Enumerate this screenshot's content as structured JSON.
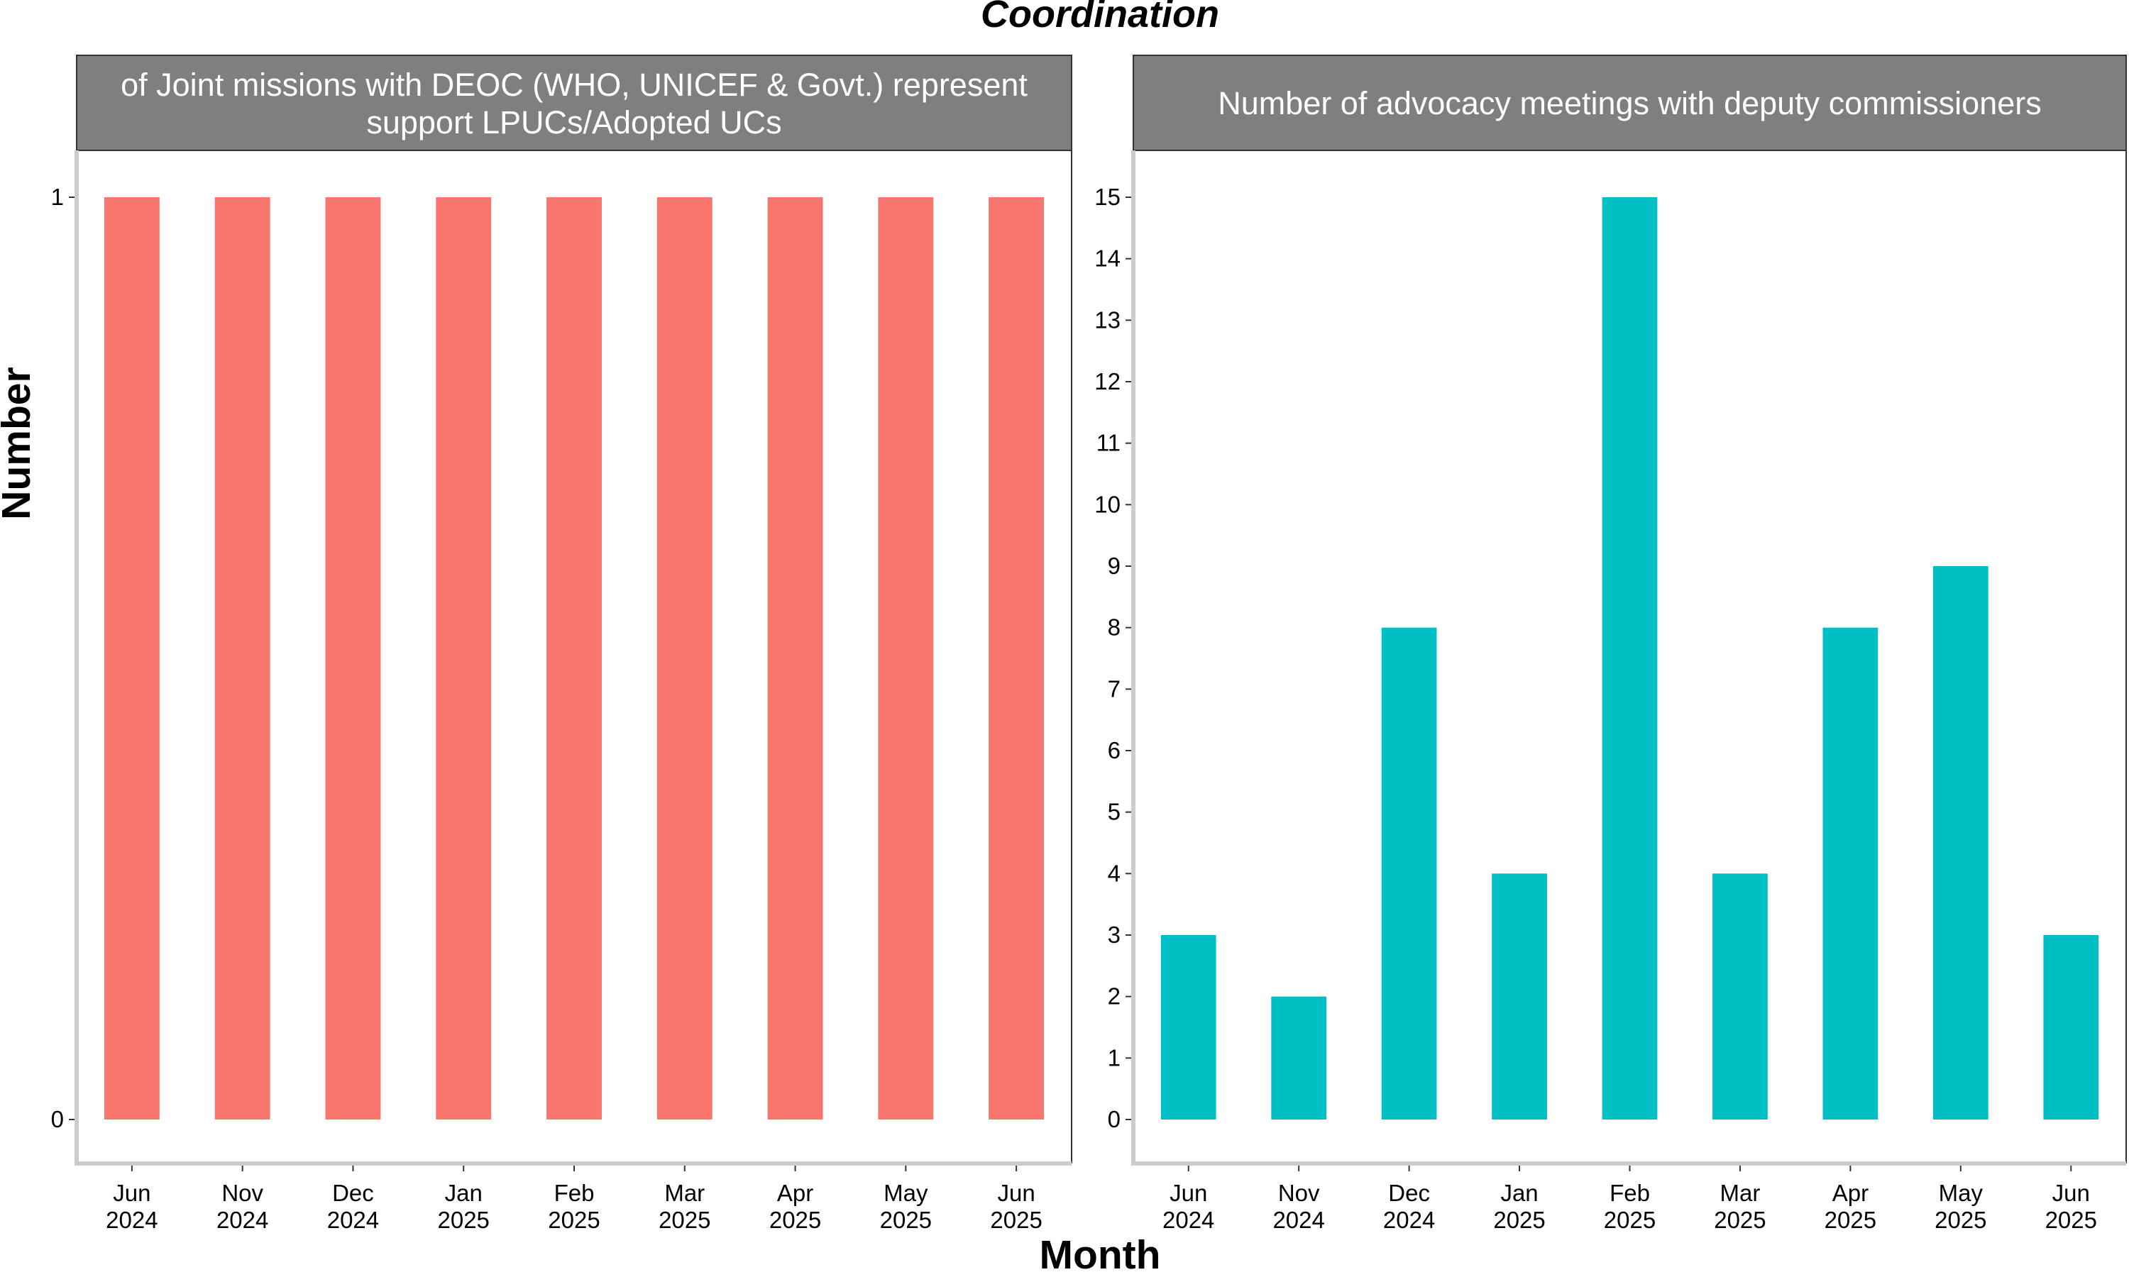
{
  "figure": {
    "title": "Coordination",
    "xlabel": "Month",
    "ylabel": "Number"
  },
  "chart_data": [
    {
      "type": "bar",
      "title_lines": [
        "of Joint missions with DEOC (WHO, UNICEF & Govt.) represent",
        "support LPUCs/Adopted UCs"
      ],
      "categories": [
        "Jun 2024",
        "Nov 2024",
        "Dec 2024",
        "Jan 2025",
        "Feb 2025",
        "Mar 2025",
        "Apr 2025",
        "May 2025",
        "Jun 2025"
      ],
      "values": [
        1,
        1,
        1,
        1,
        1,
        1,
        1,
        1,
        1
      ],
      "ylim": [
        0,
        1
      ],
      "yticks": [
        0,
        1
      ],
      "color": "#F8766D",
      "xlabel": "Month",
      "ylabel": "Number"
    },
    {
      "type": "bar",
      "title_lines": [
        "Number of advocacy meetings with deputy commissioners"
      ],
      "categories": [
        "Jun 2024",
        "Nov 2024",
        "Dec 2024",
        "Jan 2025",
        "Feb 2025",
        "Mar 2025",
        "Apr 2025",
        "May 2025",
        "Jun 2025"
      ],
      "values": [
        3,
        2,
        8,
        4,
        15,
        4,
        8,
        9,
        3
      ],
      "ylim": [
        0,
        15
      ],
      "yticks": [
        0,
        1,
        2,
        3,
        4,
        5,
        6,
        7,
        8,
        9,
        10,
        11,
        12,
        13,
        14,
        15
      ],
      "color": "#00BFC4",
      "xlabel": "Month",
      "ylabel": "Number"
    }
  ]
}
